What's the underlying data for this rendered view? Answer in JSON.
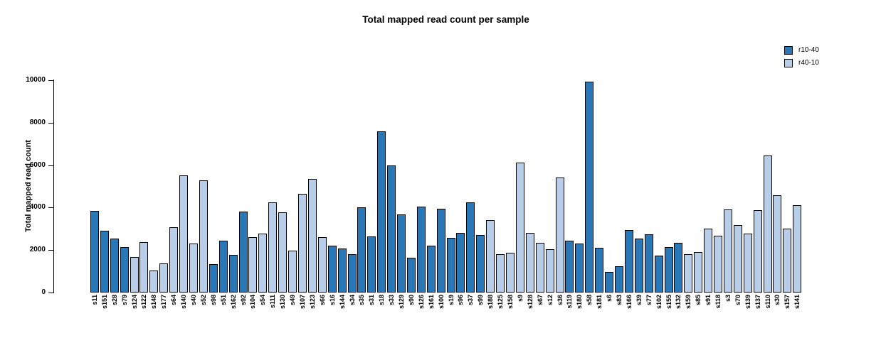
{
  "chart_data": {
    "type": "bar",
    "title": "Total mapped read count per sample",
    "xlabel": "",
    "ylabel": "Total mapped read count",
    "ylim": [
      0,
      10000
    ],
    "yticks": [
      0,
      2000,
      4000,
      6000,
      8000,
      10000
    ],
    "grid": false,
    "legend_position": "top-right",
    "legend": [
      "r10-40",
      "r40-10"
    ],
    "series_colors": {
      "r10-40": "#2878b8",
      "r40-10": "#b7cde8"
    },
    "bar_border_color": "#000000",
    "bars": [
      {
        "label": "s11",
        "value": 3860,
        "series": "r10-40"
      },
      {
        "label": "s151",
        "value": 2910,
        "series": "r10-40"
      },
      {
        "label": "s28",
        "value": 2550,
        "series": "r10-40"
      },
      {
        "label": "s79",
        "value": 2130,
        "series": "r10-40"
      },
      {
        "label": "s124",
        "value": 1680,
        "series": "r40-10"
      },
      {
        "label": "s122",
        "value": 2370,
        "series": "r40-10"
      },
      {
        "label": "s148",
        "value": 1040,
        "series": "r40-10"
      },
      {
        "label": "s177",
        "value": 1380,
        "series": "r40-10"
      },
      {
        "label": "s64",
        "value": 3080,
        "series": "r40-10"
      },
      {
        "label": "s140",
        "value": 5530,
        "series": "r40-10"
      },
      {
        "label": "s40",
        "value": 2300,
        "series": "r40-10"
      },
      {
        "label": "s52",
        "value": 5280,
        "series": "r40-10"
      },
      {
        "label": "s98",
        "value": 1330,
        "series": "r10-40"
      },
      {
        "label": "s51",
        "value": 2440,
        "series": "r10-40"
      },
      {
        "label": "s162",
        "value": 1760,
        "series": "r10-40"
      },
      {
        "label": "s92",
        "value": 3800,
        "series": "r10-40"
      },
      {
        "label": "s104",
        "value": 2600,
        "series": "r40-10"
      },
      {
        "label": "s54",
        "value": 2780,
        "series": "r40-10"
      },
      {
        "label": "s111",
        "value": 4240,
        "series": "r40-10"
      },
      {
        "label": "s130",
        "value": 3770,
        "series": "r40-10"
      },
      {
        "label": "s49",
        "value": 1960,
        "series": "r40-10"
      },
      {
        "label": "s107",
        "value": 4640,
        "series": "r40-10"
      },
      {
        "label": "s123",
        "value": 5360,
        "series": "r40-10"
      },
      {
        "label": "s66",
        "value": 2600,
        "series": "r40-10"
      },
      {
        "label": "s16",
        "value": 2220,
        "series": "r10-40"
      },
      {
        "label": "s144",
        "value": 2070,
        "series": "r10-40"
      },
      {
        "label": "s34",
        "value": 1820,
        "series": "r10-40"
      },
      {
        "label": "s35",
        "value": 4020,
        "series": "r10-40"
      },
      {
        "label": "s31",
        "value": 2630,
        "series": "r10-40"
      },
      {
        "label": "s18",
        "value": 7600,
        "series": "r10-40"
      },
      {
        "label": "s33",
        "value": 5980,
        "series": "r10-40"
      },
      {
        "label": "s129",
        "value": 3670,
        "series": "r10-40"
      },
      {
        "label": "s90",
        "value": 1650,
        "series": "r10-40"
      },
      {
        "label": "s126",
        "value": 4060,
        "series": "r10-40"
      },
      {
        "label": "s161",
        "value": 2210,
        "series": "r10-40"
      },
      {
        "label": "s100",
        "value": 3940,
        "series": "r10-40"
      },
      {
        "label": "s19",
        "value": 2580,
        "series": "r10-40"
      },
      {
        "label": "s96",
        "value": 2800,
        "series": "r10-40"
      },
      {
        "label": "s37",
        "value": 4250,
        "series": "r10-40"
      },
      {
        "label": "s99",
        "value": 2720,
        "series": "r10-40"
      },
      {
        "label": "s188",
        "value": 3410,
        "series": "r40-10"
      },
      {
        "label": "s125",
        "value": 1800,
        "series": "r40-10"
      },
      {
        "label": "s158",
        "value": 1870,
        "series": "r40-10"
      },
      {
        "label": "s9",
        "value": 6110,
        "series": "r40-10"
      },
      {
        "label": "s128",
        "value": 2820,
        "series": "r40-10"
      },
      {
        "label": "s67",
        "value": 2330,
        "series": "r40-10"
      },
      {
        "label": "s12",
        "value": 2050,
        "series": "r40-10"
      },
      {
        "label": "s36",
        "value": 5420,
        "series": "r40-10"
      },
      {
        "label": "s119",
        "value": 2440,
        "series": "r10-40"
      },
      {
        "label": "s180",
        "value": 2300,
        "series": "r10-40"
      },
      {
        "label": "s58",
        "value": 9920,
        "series": "r10-40"
      },
      {
        "label": "s181",
        "value": 2100,
        "series": "r10-40"
      },
      {
        "label": "s6",
        "value": 980,
        "series": "r10-40"
      },
      {
        "label": "s83",
        "value": 1240,
        "series": "r10-40"
      },
      {
        "label": "s166",
        "value": 2930,
        "series": "r10-40"
      },
      {
        "label": "s39",
        "value": 2550,
        "series": "r10-40"
      },
      {
        "label": "s77",
        "value": 2740,
        "series": "r10-40"
      },
      {
        "label": "s102",
        "value": 1740,
        "series": "r10-40"
      },
      {
        "label": "s155",
        "value": 2130,
        "series": "r10-40"
      },
      {
        "label": "s132",
        "value": 2350,
        "series": "r10-40"
      },
      {
        "label": "s159",
        "value": 1820,
        "series": "r40-10"
      },
      {
        "label": "s85",
        "value": 1910,
        "series": "r40-10"
      },
      {
        "label": "s91",
        "value": 3020,
        "series": "r40-10"
      },
      {
        "label": "s118",
        "value": 2670,
        "series": "r40-10"
      },
      {
        "label": "s3",
        "value": 3910,
        "series": "r40-10"
      },
      {
        "label": "s70",
        "value": 3190,
        "series": "r40-10"
      },
      {
        "label": "s139",
        "value": 2770,
        "series": "r40-10"
      },
      {
        "label": "s137",
        "value": 3880,
        "series": "r40-10"
      },
      {
        "label": "s110",
        "value": 6450,
        "series": "r40-10"
      },
      {
        "label": "s30",
        "value": 4580,
        "series": "r40-10"
      },
      {
        "label": "s157",
        "value": 3020,
        "series": "r40-10"
      },
      {
        "label": "s141",
        "value": 4100,
        "series": "r40-10"
      }
    ]
  }
}
